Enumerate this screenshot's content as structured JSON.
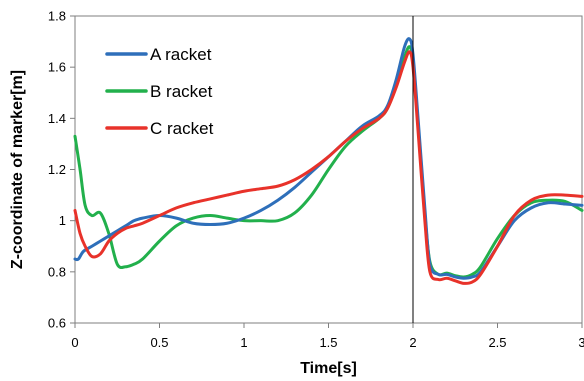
{
  "chart_data": {
    "type": "line",
    "title": "",
    "xlabel": "Time[s]",
    "ylabel": "Z-coordinate of marker[m]",
    "xlim": [
      0,
      3
    ],
    "ylim": [
      0.6,
      1.8
    ],
    "xticks": [
      "0",
      "0.5",
      "1",
      "1.5",
      "2",
      "2.5",
      "3"
    ],
    "yticks": [
      "0.6",
      "0.8",
      "1",
      "1.2",
      "1.4",
      "1.6",
      "1.8"
    ],
    "grid": false,
    "legend_position": "top-left",
    "reference_line_x": 2.0,
    "series": [
      {
        "name": "A racket",
        "color": "#2e6fba",
        "x": [
          0.0,
          0.02,
          0.05,
          0.1,
          0.15,
          0.2,
          0.25,
          0.3,
          0.35,
          0.4,
          0.5,
          0.6,
          0.7,
          0.8,
          0.9,
          1.0,
          1.1,
          1.2,
          1.3,
          1.4,
          1.5,
          1.6,
          1.7,
          1.8,
          1.85,
          1.9,
          1.95,
          1.98,
          2.0,
          2.03,
          2.07,
          2.1,
          2.15,
          2.2,
          2.25,
          2.3,
          2.35,
          2.4,
          2.5,
          2.6,
          2.7,
          2.8,
          2.9,
          3.0
        ],
        "y": [
          0.85,
          0.85,
          0.88,
          0.9,
          0.92,
          0.94,
          0.96,
          0.98,
          1.0,
          1.01,
          1.02,
          1.01,
          0.99,
          0.985,
          0.99,
          1.01,
          1.04,
          1.08,
          1.13,
          1.19,
          1.25,
          1.31,
          1.37,
          1.41,
          1.45,
          1.55,
          1.68,
          1.71,
          1.65,
          1.4,
          1.05,
          0.83,
          0.79,
          0.79,
          0.78,
          0.775,
          0.78,
          0.8,
          0.9,
          1.0,
          1.05,
          1.07,
          1.065,
          1.06
        ]
      },
      {
        "name": "B racket",
        "color": "#22b04c",
        "x": [
          0.0,
          0.03,
          0.06,
          0.1,
          0.15,
          0.2,
          0.25,
          0.3,
          0.35,
          0.4,
          0.5,
          0.6,
          0.7,
          0.8,
          0.9,
          1.0,
          1.1,
          1.2,
          1.3,
          1.4,
          1.5,
          1.6,
          1.7,
          1.8,
          1.85,
          1.9,
          1.95,
          1.98,
          2.0,
          2.03,
          2.07,
          2.1,
          2.15,
          2.2,
          2.25,
          2.3,
          2.35,
          2.4,
          2.5,
          2.6,
          2.7,
          2.8,
          2.9,
          3.0
        ],
        "y": [
          1.33,
          1.2,
          1.06,
          1.02,
          1.03,
          0.95,
          0.83,
          0.82,
          0.83,
          0.85,
          0.92,
          0.98,
          1.01,
          1.02,
          1.01,
          1.0,
          1.0,
          1.0,
          1.03,
          1.1,
          1.2,
          1.29,
          1.35,
          1.4,
          1.44,
          1.53,
          1.64,
          1.68,
          1.62,
          1.38,
          1.03,
          0.84,
          0.79,
          0.795,
          0.785,
          0.78,
          0.79,
          0.82,
          0.93,
          1.02,
          1.07,
          1.08,
          1.075,
          1.04
        ]
      },
      {
        "name": "C racket",
        "color": "#e8322a",
        "x": [
          0.0,
          0.03,
          0.06,
          0.1,
          0.15,
          0.2,
          0.25,
          0.3,
          0.35,
          0.4,
          0.5,
          0.6,
          0.7,
          0.8,
          0.9,
          1.0,
          1.1,
          1.2,
          1.3,
          1.4,
          1.5,
          1.6,
          1.7,
          1.8,
          1.85,
          1.9,
          1.95,
          1.98,
          2.0,
          2.03,
          2.07,
          2.1,
          2.15,
          2.2,
          2.25,
          2.3,
          2.35,
          2.4,
          2.5,
          2.6,
          2.7,
          2.8,
          2.9,
          3.0
        ],
        "y": [
          1.04,
          0.95,
          0.9,
          0.86,
          0.87,
          0.92,
          0.95,
          0.97,
          0.98,
          0.99,
          1.02,
          1.05,
          1.07,
          1.085,
          1.1,
          1.115,
          1.125,
          1.135,
          1.16,
          1.2,
          1.25,
          1.31,
          1.36,
          1.4,
          1.44,
          1.52,
          1.62,
          1.66,
          1.6,
          1.35,
          1.0,
          0.8,
          0.77,
          0.775,
          0.765,
          0.755,
          0.76,
          0.79,
          0.9,
          1.02,
          1.08,
          1.1,
          1.1,
          1.095
        ]
      }
    ]
  }
}
